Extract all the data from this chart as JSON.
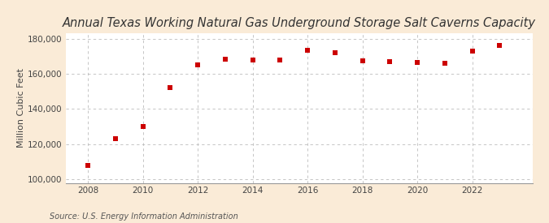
{
  "title": "Annual Texas Working Natural Gas Underground Storage Salt Caverns Capacity",
  "ylabel": "Million Cubic Feet",
  "source": "Source: U.S. Energy Information Administration",
  "background_color": "#faebd7",
  "plot_bg_color": "#ffffff",
  "marker_color": "#cc0000",
  "grid_color": "#bbbbbb",
  "years": [
    2008,
    2009,
    2010,
    2011,
    2012,
    2013,
    2014,
    2015,
    2016,
    2017,
    2018,
    2019,
    2020,
    2021,
    2022,
    2023
  ],
  "values": [
    108000,
    123000,
    130000,
    152000,
    165000,
    168500,
    168000,
    168000,
    173500,
    172000,
    167500,
    167000,
    166500,
    166000,
    173000,
    176000
  ],
  "ylim": [
    98000,
    183000
  ],
  "yticks": [
    100000,
    120000,
    140000,
    160000,
    180000
  ],
  "xlim": [
    2007.2,
    2024.2
  ],
  "xticks": [
    2008,
    2010,
    2012,
    2014,
    2016,
    2018,
    2020,
    2022
  ],
  "title_fontsize": 10.5,
  "label_fontsize": 8,
  "tick_fontsize": 7.5,
  "source_fontsize": 7,
  "marker_size": 22
}
